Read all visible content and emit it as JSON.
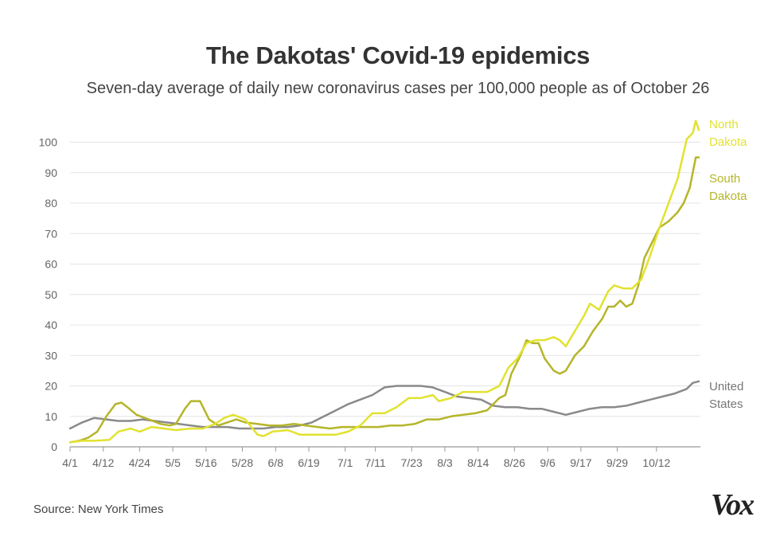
{
  "title": "The Dakotas' Covid-19 epidemics",
  "subtitle": "Seven-day average of daily new coronavirus cases per 100,000 people as of October 26",
  "source": "Source: New York Times",
  "logo": "Vox",
  "chart_data": {
    "type": "line",
    "title": "The Dakotas' Covid-19 epidemics",
    "xlabel": "",
    "ylabel": "",
    "xlim": [
      0,
      208
    ],
    "ylim": [
      0,
      100
    ],
    "grid": true,
    "yticks": [
      0,
      10,
      20,
      30,
      40,
      50,
      60,
      70,
      80,
      90,
      100
    ],
    "xticks": [
      {
        "label": "4/1",
        "day": 0
      },
      {
        "label": "4/12",
        "day": 11
      },
      {
        "label": "4/24",
        "day": 23
      },
      {
        "label": "5/5",
        "day": 34
      },
      {
        "label": "5/16",
        "day": 45
      },
      {
        "label": "5/28",
        "day": 57
      },
      {
        "label": "6/8",
        "day": 68
      },
      {
        "label": "6/19",
        "day": 79
      },
      {
        "label": "7/1",
        "day": 91
      },
      {
        "label": "7/11",
        "day": 101
      },
      {
        "label": "7/23",
        "day": 113
      },
      {
        "label": "8/3",
        "day": 124
      },
      {
        "label": "8/14",
        "day": 135
      },
      {
        "label": "8/26",
        "day": 147
      },
      {
        "label": "9/6",
        "day": 158
      },
      {
        "label": "9/17",
        "day": 169
      },
      {
        "label": "9/29",
        "day": 181
      },
      {
        "label": "10/12",
        "day": 194
      }
    ],
    "series": [
      {
        "name": "North Dakota",
        "label_lines": [
          "North",
          "Dakota"
        ],
        "color": "#e2e230",
        "points": [
          [
            0,
            1.5
          ],
          [
            4,
            2
          ],
          [
            8,
            2
          ],
          [
            13,
            2.3
          ],
          [
            16,
            5
          ],
          [
            20,
            6
          ],
          [
            23,
            5
          ],
          [
            27,
            6.5
          ],
          [
            31,
            6
          ],
          [
            35,
            5.5
          ],
          [
            40,
            6
          ],
          [
            44,
            6
          ],
          [
            48,
            7.5
          ],
          [
            51,
            9.5
          ],
          [
            54,
            10.5
          ],
          [
            58,
            9
          ],
          [
            62,
            4
          ],
          [
            64,
            3.5
          ],
          [
            67,
            5
          ],
          [
            72,
            5.5
          ],
          [
            76,
            4
          ],
          [
            80,
            4
          ],
          [
            84,
            4
          ],
          [
            88,
            4
          ],
          [
            92,
            5
          ],
          [
            96,
            7
          ],
          [
            100,
            11
          ],
          [
            104,
            11
          ],
          [
            108,
            13
          ],
          [
            112,
            16
          ],
          [
            116,
            16
          ],
          [
            120,
            17
          ],
          [
            122,
            15
          ],
          [
            126,
            16
          ],
          [
            130,
            18
          ],
          [
            134,
            18
          ],
          [
            138,
            18
          ],
          [
            142,
            20
          ],
          [
            145,
            26
          ],
          [
            148,
            29
          ],
          [
            151,
            34
          ],
          [
            154,
            35
          ],
          [
            157,
            35
          ],
          [
            160,
            36
          ],
          [
            162,
            35
          ],
          [
            164,
            33
          ],
          [
            167,
            38
          ],
          [
            170,
            43
          ],
          [
            172,
            47
          ],
          [
            175,
            45
          ],
          [
            178,
            51
          ],
          [
            180,
            53
          ],
          [
            183,
            52
          ],
          [
            186,
            52
          ],
          [
            189,
            55
          ],
          [
            192,
            63
          ],
          [
            195,
            72
          ],
          [
            198,
            80
          ],
          [
            201,
            88
          ],
          [
            204,
            101
          ],
          [
            206,
            103
          ],
          [
            207,
            107
          ],
          [
            208,
            104
          ]
        ]
      },
      {
        "name": "South Dakota",
        "label_lines": [
          "South",
          "Dakota"
        ],
        "color": "#b5b52a",
        "points": [
          [
            0,
            1.5
          ],
          [
            3,
            2
          ],
          [
            6,
            3
          ],
          [
            9,
            5
          ],
          [
            12,
            10
          ],
          [
            15,
            14
          ],
          [
            17,
            14.5
          ],
          [
            19,
            13
          ],
          [
            22,
            10.5
          ],
          [
            26,
            9
          ],
          [
            30,
            7.5
          ],
          [
            33,
            7
          ],
          [
            35,
            7.5
          ],
          [
            38,
            12.5
          ],
          [
            40,
            15
          ],
          [
            43,
            15
          ],
          [
            46,
            9
          ],
          [
            49,
            7
          ],
          [
            52,
            8
          ],
          [
            55,
            9
          ],
          [
            58,
            8
          ],
          [
            62,
            7.5
          ],
          [
            66,
            7
          ],
          [
            70,
            7
          ],
          [
            74,
            7.5
          ],
          [
            78,
            7
          ],
          [
            82,
            6.5
          ],
          [
            86,
            6
          ],
          [
            90,
            6.5
          ],
          [
            94,
            6.5
          ],
          [
            98,
            6.5
          ],
          [
            102,
            6.5
          ],
          [
            106,
            7
          ],
          [
            110,
            7
          ],
          [
            114,
            7.5
          ],
          [
            118,
            9
          ],
          [
            122,
            9
          ],
          [
            126,
            10
          ],
          [
            130,
            10.5
          ],
          [
            134,
            11
          ],
          [
            138,
            12
          ],
          [
            142,
            16
          ],
          [
            144,
            17
          ],
          [
            146,
            24
          ],
          [
            149,
            30
          ],
          [
            151,
            35
          ],
          [
            153,
            34
          ],
          [
            155,
            34
          ],
          [
            157,
            29
          ],
          [
            160,
            25
          ],
          [
            162,
            24
          ],
          [
            164,
            25
          ],
          [
            167,
            30
          ],
          [
            170,
            33
          ],
          [
            173,
            38
          ],
          [
            176,
            42
          ],
          [
            178,
            46
          ],
          [
            180,
            46
          ],
          [
            182,
            48
          ],
          [
            184,
            46
          ],
          [
            186,
            47
          ],
          [
            188,
            53
          ],
          [
            190,
            62
          ],
          [
            193,
            68
          ],
          [
            195,
            72
          ],
          [
            198,
            74
          ],
          [
            201,
            77
          ],
          [
            203,
            80
          ],
          [
            205,
            85
          ],
          [
            206,
            90
          ],
          [
            207,
            95
          ],
          [
            208,
            95
          ]
        ]
      },
      {
        "name": "United States",
        "label_lines": [
          "United",
          "States"
        ],
        "color": "#8a8a8a",
        "points": [
          [
            0,
            6
          ],
          [
            4,
            8
          ],
          [
            8,
            9.5
          ],
          [
            12,
            9
          ],
          [
            16,
            8.5
          ],
          [
            20,
            8.5
          ],
          [
            24,
            9
          ],
          [
            28,
            8.5
          ],
          [
            32,
            8
          ],
          [
            36,
            7.5
          ],
          [
            40,
            7
          ],
          [
            44,
            6.5
          ],
          [
            48,
            6.5
          ],
          [
            52,
            6.5
          ],
          [
            56,
            6
          ],
          [
            60,
            6
          ],
          [
            64,
            6
          ],
          [
            68,
            6.5
          ],
          [
            72,
            6.5
          ],
          [
            76,
            7
          ],
          [
            80,
            8
          ],
          [
            84,
            10
          ],
          [
            88,
            12
          ],
          [
            92,
            14
          ],
          [
            96,
            15.5
          ],
          [
            100,
            17
          ],
          [
            104,
            19.5
          ],
          [
            108,
            20
          ],
          [
            112,
            20
          ],
          [
            116,
            20
          ],
          [
            120,
            19.5
          ],
          [
            124,
            18
          ],
          [
            128,
            16.5
          ],
          [
            132,
            16
          ],
          [
            136,
            15.5
          ],
          [
            140,
            13.5
          ],
          [
            144,
            13
          ],
          [
            148,
            13
          ],
          [
            152,
            12.5
          ],
          [
            156,
            12.5
          ],
          [
            160,
            11.5
          ],
          [
            164,
            10.5
          ],
          [
            168,
            11.5
          ],
          [
            172,
            12.5
          ],
          [
            176,
            13
          ],
          [
            180,
            13
          ],
          [
            184,
            13.5
          ],
          [
            188,
            14.5
          ],
          [
            192,
            15.5
          ],
          [
            196,
            16.5
          ],
          [
            200,
            17.5
          ],
          [
            204,
            19
          ],
          [
            206,
            21
          ],
          [
            208,
            21.5
          ]
        ]
      }
    ]
  }
}
